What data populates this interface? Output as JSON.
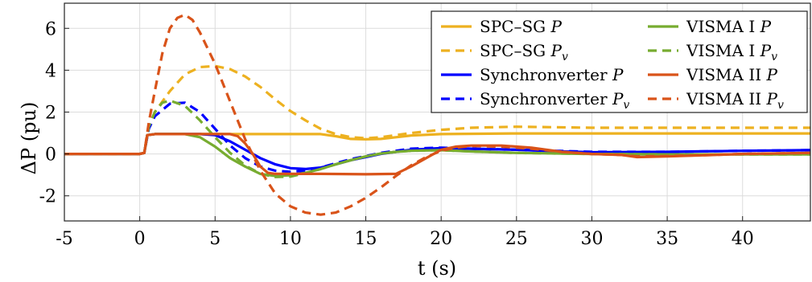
{
  "chart_data": {
    "type": "line",
    "title": "",
    "xlabel": "t (s)",
    "ylabel": "ΔP (pu)",
    "xlim": [
      -5,
      44.5
    ],
    "ylim": [
      -3.2,
      7.2
    ],
    "grid": true,
    "legend_placement": "top-right",
    "legend_columns": 2,
    "x_ticks": [
      -5,
      0,
      5,
      10,
      15,
      20,
      25,
      30,
      35,
      40
    ],
    "x_tick_labels": [
      "-5",
      "0",
      "5",
      "10",
      "15",
      "20",
      "25",
      "30",
      "35",
      "40"
    ],
    "y_ticks": [
      -2,
      0,
      2,
      4,
      6
    ],
    "y_tick_labels": [
      "-2",
      "0",
      "2",
      "4",
      "6"
    ],
    "series": [
      {
        "name": "SPC–SG P",
        "color": "#EDB120",
        "dash": "solid",
        "points": [
          [
            -5,
            0
          ],
          [
            0,
            0
          ],
          [
            0.3,
            0.05
          ],
          [
            0.5,
            0.9
          ],
          [
            1,
            0.95
          ],
          [
            5,
            0.95
          ],
          [
            10,
            0.95
          ],
          [
            12,
            0.95
          ],
          [
            13,
            0.85
          ],
          [
            14,
            0.72
          ],
          [
            15,
            0.7
          ],
          [
            16,
            0.72
          ],
          [
            17,
            0.8
          ],
          [
            18,
            0.88
          ],
          [
            20,
            0.95
          ],
          [
            25,
            0.98
          ],
          [
            30,
            0.98
          ],
          [
            44.5,
            0.98
          ]
        ]
      },
      {
        "name": "SPC–SG Pv",
        "color": "#EDB120",
        "dash": "dashed",
        "points": [
          [
            -5,
            0
          ],
          [
            0,
            0
          ],
          [
            0.3,
            0.05
          ],
          [
            0.6,
            1.3
          ],
          [
            1,
            2.0
          ],
          [
            2,
            3.0
          ],
          [
            3,
            3.8
          ],
          [
            4,
            4.15
          ],
          [
            5,
            4.2
          ],
          [
            6,
            4.05
          ],
          [
            7,
            3.7
          ],
          [
            8,
            3.2
          ],
          [
            9,
            2.6
          ],
          [
            10,
            2.05
          ],
          [
            11,
            1.6
          ],
          [
            12,
            1.2
          ],
          [
            13,
            0.95
          ],
          [
            14,
            0.8
          ],
          [
            15,
            0.75
          ],
          [
            16,
            0.8
          ],
          [
            17,
            0.9
          ],
          [
            18,
            1.0
          ],
          [
            20,
            1.15
          ],
          [
            22,
            1.25
          ],
          [
            25,
            1.3
          ],
          [
            30,
            1.25
          ],
          [
            35,
            1.25
          ],
          [
            40,
            1.25
          ],
          [
            44.5,
            1.25
          ]
        ]
      },
      {
        "name": "Synchronverter P",
        "color": "#0000FF",
        "dash": "solid",
        "points": [
          [
            -5,
            0
          ],
          [
            0,
            0
          ],
          [
            0.3,
            0.05
          ],
          [
            0.5,
            0.9
          ],
          [
            1,
            0.95
          ],
          [
            4,
            0.95
          ],
          [
            5,
            0.9
          ],
          [
            6,
            0.6
          ],
          [
            7,
            0.2
          ],
          [
            8,
            -0.2
          ],
          [
            9,
            -0.5
          ],
          [
            10,
            -0.68
          ],
          [
            11,
            -0.72
          ],
          [
            12,
            -0.65
          ],
          [
            13,
            -0.5
          ],
          [
            14,
            -0.3
          ],
          [
            15,
            -0.15
          ],
          [
            16,
            0
          ],
          [
            17,
            0.1
          ],
          [
            18,
            0.2
          ],
          [
            20,
            0.28
          ],
          [
            22,
            0.25
          ],
          [
            25,
            0.2
          ],
          [
            28,
            0.12
          ],
          [
            30,
            0.08
          ],
          [
            35,
            0.1
          ],
          [
            40,
            0.15
          ],
          [
            44.5,
            0.18
          ]
        ]
      },
      {
        "name": "Synchronverter Pv",
        "color": "#0000FF",
        "dash": "dashed",
        "points": [
          [
            -5,
            0
          ],
          [
            0,
            0
          ],
          [
            0.3,
            0.05
          ],
          [
            0.6,
            1.2
          ],
          [
            1,
            1.8
          ],
          [
            2,
            2.4
          ],
          [
            3,
            2.45
          ],
          [
            4,
            2.0
          ],
          [
            5,
            1.2
          ],
          [
            6,
            0.4
          ],
          [
            7,
            -0.2
          ],
          [
            8,
            -0.6
          ],
          [
            9,
            -0.8
          ],
          [
            10,
            -0.85
          ],
          [
            11,
            -0.8
          ],
          [
            12,
            -0.65
          ],
          [
            13,
            -0.45
          ],
          [
            14,
            -0.25
          ],
          [
            15,
            -0.1
          ],
          [
            16,
            0.05
          ],
          [
            17,
            0.15
          ],
          [
            18,
            0.25
          ],
          [
            20,
            0.3
          ],
          [
            22,
            0.25
          ],
          [
            25,
            0.2
          ],
          [
            30,
            0.1
          ],
          [
            35,
            0.1
          ],
          [
            40,
            0.15
          ],
          [
            44.5,
            0.18
          ]
        ]
      },
      {
        "name": "VISMA I P",
        "color": "#77AC30",
        "dash": "solid",
        "points": [
          [
            -5,
            0
          ],
          [
            0,
            0
          ],
          [
            0.3,
            0.05
          ],
          [
            0.5,
            0.9
          ],
          [
            1,
            0.95
          ],
          [
            3,
            0.95
          ],
          [
            4,
            0.8
          ],
          [
            5,
            0.35
          ],
          [
            6,
            -0.2
          ],
          [
            7,
            -0.6
          ],
          [
            8,
            -0.95
          ],
          [
            9,
            -1.05
          ],
          [
            10,
            -1.02
          ],
          [
            11,
            -0.9
          ],
          [
            12,
            -0.72
          ],
          [
            13,
            -0.5
          ],
          [
            14,
            -0.3
          ],
          [
            15,
            -0.12
          ],
          [
            16,
            0.02
          ],
          [
            17,
            0.1
          ],
          [
            18,
            0.15
          ],
          [
            20,
            0.18
          ],
          [
            22,
            0.12
          ],
          [
            25,
            0.05
          ],
          [
            30,
            0
          ],
          [
            35,
            -0.02
          ],
          [
            40,
            -0.02
          ],
          [
            44.5,
            -0.02
          ]
        ]
      },
      {
        "name": "VISMA I Pv",
        "color": "#77AC30",
        "dash": "dashed",
        "points": [
          [
            -5,
            0
          ],
          [
            0,
            0
          ],
          [
            0.3,
            0.05
          ],
          [
            0.6,
            1.3
          ],
          [
            1,
            2.0
          ],
          [
            1.5,
            2.45
          ],
          [
            2,
            2.55
          ],
          [
            3,
            2.3
          ],
          [
            4,
            1.6
          ],
          [
            5,
            0.8
          ],
          [
            6,
            0.05
          ],
          [
            7,
            -0.55
          ],
          [
            8,
            -0.95
          ],
          [
            9,
            -1.1
          ],
          [
            10,
            -1.08
          ],
          [
            11,
            -0.92
          ],
          [
            12,
            -0.72
          ],
          [
            13,
            -0.5
          ],
          [
            14,
            -0.3
          ],
          [
            15,
            -0.12
          ],
          [
            16,
            0.02
          ],
          [
            17,
            0.1
          ],
          [
            18,
            0.15
          ],
          [
            20,
            0.18
          ],
          [
            22,
            0.12
          ],
          [
            25,
            0.05
          ],
          [
            30,
            0
          ],
          [
            35,
            -0.02
          ],
          [
            40,
            -0.02
          ],
          [
            44.5,
            -0.02
          ]
        ]
      },
      {
        "name": "VISMA II P",
        "color": "#D95319",
        "dash": "solid",
        "points": [
          [
            -5,
            0
          ],
          [
            0,
            0
          ],
          [
            0.3,
            0.05
          ],
          [
            0.5,
            0.9
          ],
          [
            1,
            0.95
          ],
          [
            6,
            0.95
          ],
          [
            6.5,
            0.85
          ],
          [
            7,
            0.5
          ],
          [
            7.5,
            0
          ],
          [
            8,
            -0.6
          ],
          [
            8.5,
            -0.9
          ],
          [
            9,
            -0.95
          ],
          [
            12,
            -0.95
          ],
          [
            15,
            -0.97
          ],
          [
            17,
            -0.95
          ],
          [
            18,
            -0.6
          ],
          [
            19,
            -0.2
          ],
          [
            20,
            0.2
          ],
          [
            21,
            0.35
          ],
          [
            22,
            0.4
          ],
          [
            24,
            0.4
          ],
          [
            26,
            0.3
          ],
          [
            28,
            0.1
          ],
          [
            30,
            0
          ],
          [
            32,
            -0.05
          ],
          [
            33,
            -0.15
          ],
          [
            35,
            -0.12
          ],
          [
            38,
            -0.05
          ],
          [
            40,
            0
          ],
          [
            44.5,
            0.05
          ]
        ]
      },
      {
        "name": "VISMA II Pv",
        "color": "#D95319",
        "dash": "dashed",
        "points": [
          [
            -5,
            0
          ],
          [
            0,
            0
          ],
          [
            0.3,
            0.05
          ],
          [
            0.6,
            1.5
          ],
          [
            1,
            3.0
          ],
          [
            1.5,
            4.8
          ],
          [
            2,
            6.0
          ],
          [
            2.5,
            6.5
          ],
          [
            3,
            6.65
          ],
          [
            3.5,
            6.4
          ],
          [
            4,
            5.8
          ],
          [
            5,
            4.3
          ],
          [
            6,
            2.5
          ],
          [
            7,
            0.7
          ],
          [
            8,
            -0.8
          ],
          [
            9,
            -1.9
          ],
          [
            10,
            -2.5
          ],
          [
            11,
            -2.8
          ],
          [
            12,
            -2.9
          ],
          [
            13,
            -2.8
          ],
          [
            14,
            -2.5
          ],
          [
            15,
            -2.1
          ],
          [
            16,
            -1.6
          ],
          [
            17,
            -1.05
          ],
          [
            18,
            -0.55
          ],
          [
            19,
            -0.15
          ],
          [
            20,
            0.15
          ],
          [
            21,
            0.3
          ],
          [
            22,
            0.38
          ],
          [
            24,
            0.35
          ],
          [
            26,
            0.25
          ],
          [
            28,
            0.1
          ],
          [
            30,
            0
          ],
          [
            32,
            -0.05
          ],
          [
            33,
            -0.12
          ],
          [
            35,
            -0.1
          ],
          [
            38,
            -0.05
          ],
          [
            40,
            0
          ],
          [
            44.5,
            0.05
          ]
        ]
      }
    ],
    "legend": [
      {
        "label": "SPC–SG",
        "symbol": "P",
        "sub": "",
        "color": "#EDB120",
        "dash": "solid"
      },
      {
        "label": "SPC–SG",
        "symbol": "P",
        "sub": "v",
        "color": "#EDB120",
        "dash": "dashed"
      },
      {
        "label": "Synchronverter",
        "symbol": "P",
        "sub": "",
        "color": "#0000FF",
        "dash": "solid"
      },
      {
        "label": "Synchronverter",
        "symbol": "P",
        "sub": "v",
        "color": "#0000FF",
        "dash": "dashed"
      },
      {
        "label": "VISMA I",
        "symbol": "P",
        "sub": "",
        "color": "#77AC30",
        "dash": "solid"
      },
      {
        "label": "VISMA I",
        "symbol": "P",
        "sub": "v",
        "color": "#77AC30",
        "dash": "dashed"
      },
      {
        "label": "VISMA II",
        "symbol": "P",
        "sub": "",
        "color": "#D95319",
        "dash": "solid"
      },
      {
        "label": "VISMA II",
        "symbol": "P",
        "sub": "v",
        "color": "#D95319",
        "dash": "dashed"
      }
    ]
  }
}
